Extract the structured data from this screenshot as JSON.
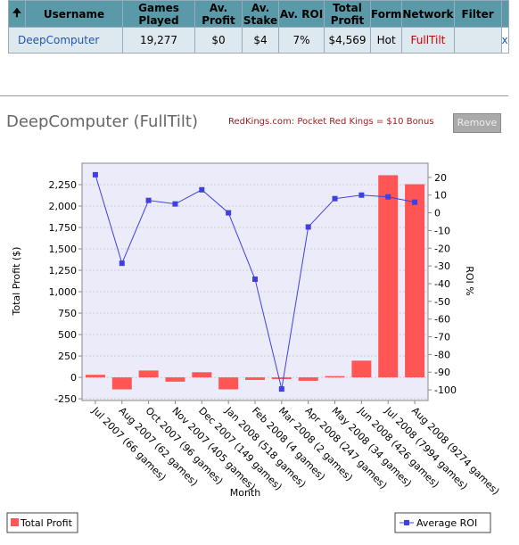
{
  "table": {
    "headers": [
      "Username",
      "Games Played",
      "Av. Profit",
      "Av. Stake",
      "Av. ROI",
      "Total Profit",
      "Form",
      "Network",
      "Filter"
    ],
    "rows": [
      [
        "DeepComputer",
        "19,277",
        "$0",
        "$4",
        "7%",
        "$4,569",
        "Hot",
        "FullTilt"
      ]
    ],
    "remove_link": "x"
  },
  "player_title": "DeepComputer (FullTilt)",
  "promo": "RedKings.com: Pocket Red Kings = $10 Bonus",
  "button": "Remove",
  "chart_data": {
    "type": "bar",
    "x_label": "Month",
    "y_label": "Total Profit ($)",
    "y2_label": "ROI %",
    "categories": [
      "Jul 2007 (66 games)",
      "Aug 2007 (62 games)",
      "Oct 2007 (96 games)",
      "Nov 2007 (405 games)",
      "Dec 2007 (149 games)",
      "Jan 2008 (518 games)",
      "Feb 2008 (4 games)",
      "Mar 2008 (2 games)",
      "Apr 2008 (247 games)",
      "May 2008 (34 games)",
      "Jun 2008 (426 games)",
      "Jul 2008 (7994 games)",
      "Aug 2008 (9274 games)"
    ],
    "series": [
      {
        "name": "Total Profit",
        "color": "#ff5555",
        "values": [
          30,
          -140,
          80,
          -50,
          60,
          -140,
          -30,
          -20,
          -40,
          15,
          195,
          2360,
          2255
        ]
      },
      {
        "name": "Average ROI",
        "color": "#4040e0",
        "type": "line",
        "axis": "y2",
        "values": [
          21.5,
          -28.5,
          7,
          5,
          13,
          0,
          -37.5,
          -99.5,
          -8,
          8,
          10,
          9,
          6
        ]
      }
    ],
    "ylim": [
      -270,
      2500
    ],
    "yticks": [
      -250,
      0,
      250,
      500,
      750,
      {
        "value": 1000,
        "label": "1,000"
      },
      {
        "value": 1250,
        "label": "1,250"
      },
      {
        "value": 1500,
        "label": "1,500"
      },
      {
        "value": 1750,
        "label": "1,750"
      },
      {
        "value": 2000,
        "label": "2,000"
      },
      {
        "value": 2250,
        "label": "2,250"
      }
    ],
    "y2lim": [
      -106,
      28
    ],
    "y2ticks": [
      -100,
      -90,
      -80,
      -70,
      -60,
      -50,
      -40,
      -30,
      -20,
      -10,
      0,
      10,
      20
    ],
    "grid": true,
    "legend": "bottom"
  }
}
